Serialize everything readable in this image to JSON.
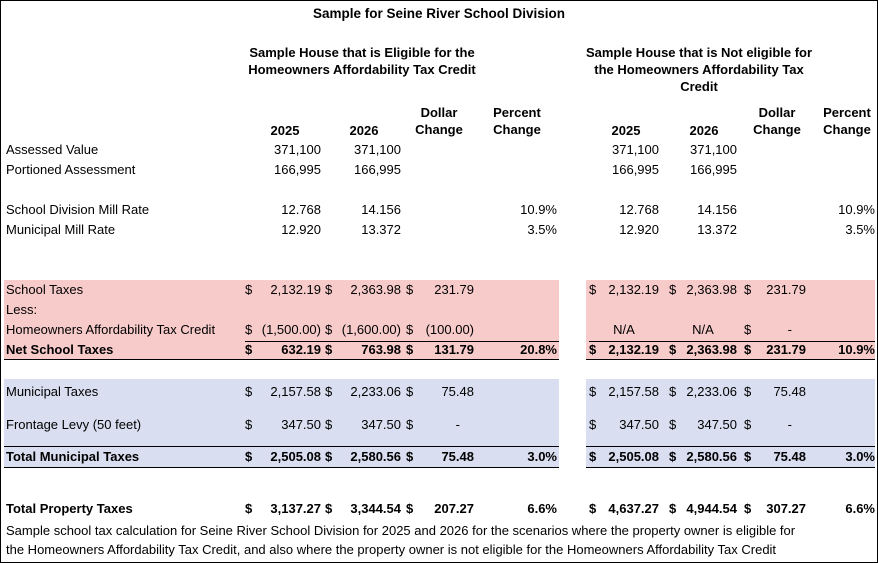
{
  "title": "Sample for Seine River School Division",
  "groups": {
    "eligible": "Sample House that is Eligible for the Homeowners Affordability Tax Credit",
    "not_eligible": "Sample House that is Not eligible for the Homeowners Affordability Tax Credit"
  },
  "columns": {
    "y2025": "2025",
    "y2026": "2026",
    "dollar_change": "Dollar Change",
    "percent_change": "Percent Change"
  },
  "rows": {
    "assessed": {
      "label": "Assessed Value",
      "e": [
        "371,100",
        "371,100",
        "",
        ""
      ],
      "n": [
        "371,100",
        "371,100",
        "",
        ""
      ]
    },
    "portioned": {
      "label": "Portioned Assessment",
      "e": [
        "166,995",
        "166,995",
        "",
        ""
      ],
      "n": [
        "166,995",
        "166,995",
        "",
        ""
      ]
    },
    "school_mill": {
      "label": "School Division Mill Rate",
      "e": [
        "12.768",
        "14.156",
        "",
        "10.9%"
      ],
      "n": [
        "12.768",
        "14.156",
        "",
        "10.9%"
      ]
    },
    "municipal_mill": {
      "label": "Municipal Mill Rate",
      "e": [
        "12.920",
        "13.372",
        "",
        "3.5%"
      ],
      "n": [
        "12.920",
        "13.372",
        "",
        "3.5%"
      ]
    },
    "school_taxes": {
      "label": "School Taxes",
      "e": [
        "2,132.19",
        "2,363.98",
        "231.79",
        ""
      ],
      "n": [
        "2,132.19",
        "2,363.98",
        "231.79",
        ""
      ]
    },
    "less": {
      "label": "Less:"
    },
    "credit": {
      "label": "Homeowners Affordability Tax Credit",
      "e": [
        "(1,500.00)",
        "(1,600.00)",
        "(100.00)",
        ""
      ],
      "n": [
        "N/A",
        "N/A",
        "-",
        ""
      ]
    },
    "net_school": {
      "label": "Net School Taxes",
      "e": [
        "632.19",
        "763.98",
        "131.79",
        "20.8%"
      ],
      "n": [
        "2,132.19",
        "2,363.98",
        "231.79",
        "10.9%"
      ]
    },
    "municipal_taxes": {
      "label": "Municipal Taxes",
      "e": [
        "2,157.58",
        "2,233.06",
        "75.48",
        ""
      ],
      "n": [
        "2,157.58",
        "2,233.06",
        "75.48",
        ""
      ]
    },
    "frontage": {
      "label": "Frontage Levy (50 feet)",
      "e": [
        "347.50",
        "347.50",
        "-",
        ""
      ],
      "n": [
        "347.50",
        "347.50",
        "-",
        ""
      ]
    },
    "total_municipal": {
      "label": "Total Municipal Taxes",
      "e": [
        "2,505.08",
        "2,580.56",
        "75.48",
        "3.0%"
      ],
      "n": [
        "2,505.08",
        "2,580.56",
        "75.48",
        "3.0%"
      ]
    },
    "total_property": {
      "label": "Total Property Taxes",
      "e": [
        "3,137.27",
        "3,344.54",
        "207.27",
        "6.6%"
      ],
      "n": [
        "4,637.27",
        "4,944.54",
        "307.27",
        "6.6%"
      ]
    }
  },
  "currency_symbol": "$",
  "footnote": {
    "line1": "Sample school tax calculation for Seine River School Division for 2025 and 2026 for the scenarios where the property owner is eligible for",
    "line2": "the Homeowners Affordability Tax Credit, and also where the property owner is not eligible for the Homeowners Affordability Tax Credit"
  },
  "colors": {
    "school_band": "#f8cbcb",
    "municipal_band": "#d9dff0"
  }
}
